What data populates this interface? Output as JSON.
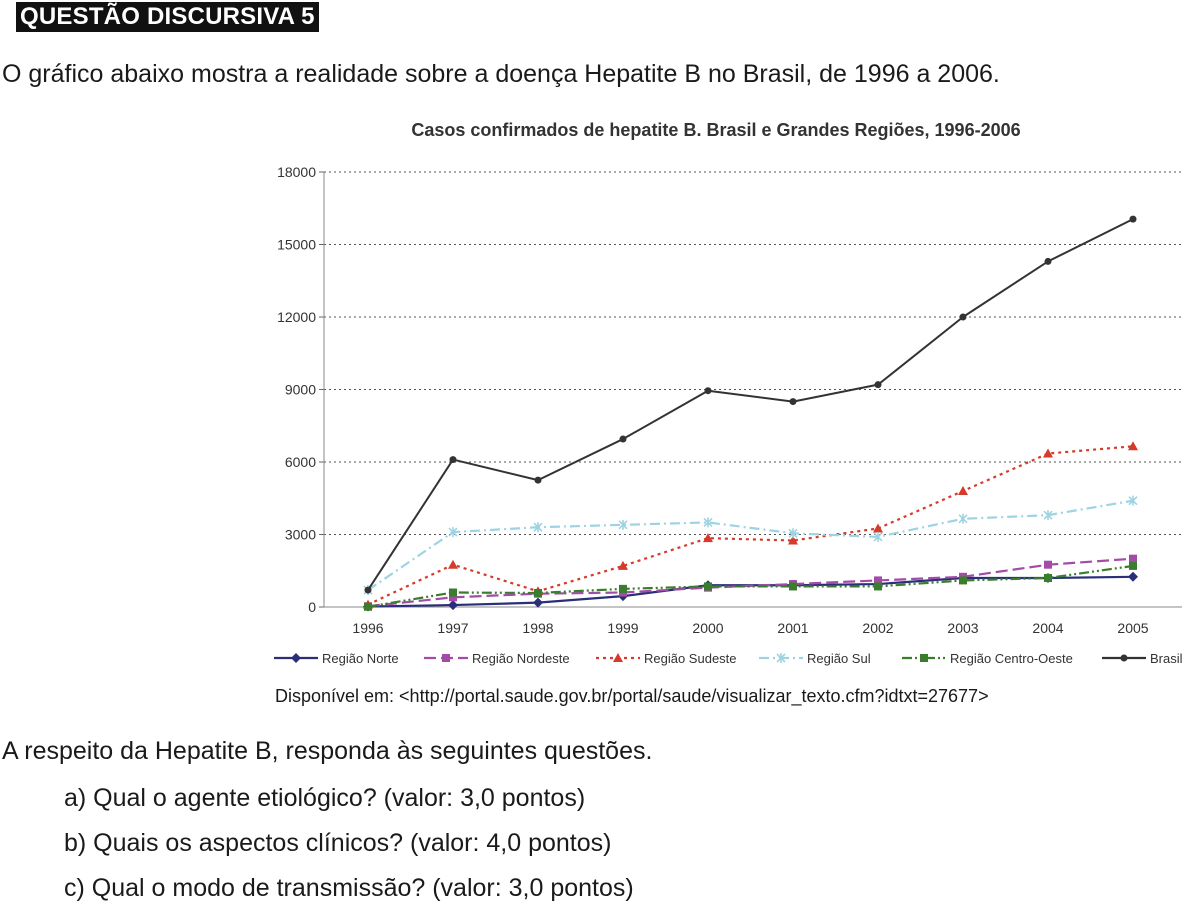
{
  "header": {
    "badge": "QUESTÃO DISCURSIVA 5"
  },
  "intro": "O gráfico abaixo mostra a realidade sobre a doença Hepatite B no Brasil, de 1996 a 2006.",
  "source": "Disponível em: <http://portal.saude.gov.br/portal/saude/visualizar_texto.cfm?idtxt=27677>",
  "lead": "A respeito da Hepatite B, responda às seguintes questões.",
  "questions": [
    "a) Qual o agente etiológico? (valor: 3,0 pontos)",
    "b) Quais os aspectos clínicos? (valor: 4,0 pontos)",
    "c) Qual o modo de transmissão? (valor: 3,0 pontos)"
  ],
  "chart_data": {
    "type": "line",
    "title": "Casos confirmados de hepatite B. Brasil e Grandes Regiões, 1996-2006",
    "xlabel": "",
    "ylabel": "",
    "x": [
      "1996",
      "1997",
      "1998",
      "1999",
      "2000",
      "2001",
      "2002",
      "2003",
      "2004",
      "2005"
    ],
    "ylim": [
      0,
      18000
    ],
    "yticks": [
      0,
      3000,
      6000,
      9000,
      12000,
      15000,
      18000
    ],
    "ytick_labels": [
      "0",
      "3000",
      "6000",
      "9000",
      "12000",
      "15000",
      "18000"
    ],
    "grid": true,
    "legend_position": "bottom",
    "series": [
      {
        "name": "Região Norte",
        "color": "#2b2f7a",
        "dash": "solid",
        "marker": "diamond",
        "values": [
          20,
          80,
          180,
          450,
          900,
          900,
          950,
          1200,
          1200,
          1250
        ]
      },
      {
        "name": "Região Nordeste",
        "color": "#a24ca8",
        "dash": "long-dash",
        "marker": "square",
        "values": [
          30,
          400,
          550,
          600,
          800,
          950,
          1100,
          1250,
          1750,
          2000
        ]
      },
      {
        "name": "Região Sudeste",
        "color": "#d63a2a",
        "dash": "dot",
        "marker": "triangle",
        "values": [
          100,
          1750,
          650,
          1700,
          2850,
          2750,
          3250,
          4800,
          6350,
          6650
        ]
      },
      {
        "name": "Região Sul",
        "color": "#9ed3e3",
        "dash": "dash-dot",
        "marker": "star",
        "values": [
          700,
          3100,
          3300,
          3400,
          3500,
          3050,
          2900,
          3650,
          3800,
          4400
        ]
      },
      {
        "name": "Região Centro-Oeste",
        "color": "#3a7d2c",
        "dash": "dash-dot-dot",
        "marker": "square",
        "values": [
          10,
          600,
          580,
          750,
          850,
          850,
          850,
          1100,
          1200,
          1700
        ]
      },
      {
        "name": "Brasil",
        "color": "#333333",
        "dash": "solid",
        "marker": "circle",
        "values": [
          700,
          6100,
          5250,
          6950,
          8950,
          8500,
          9200,
          12000,
          14300,
          16050
        ]
      }
    ]
  }
}
